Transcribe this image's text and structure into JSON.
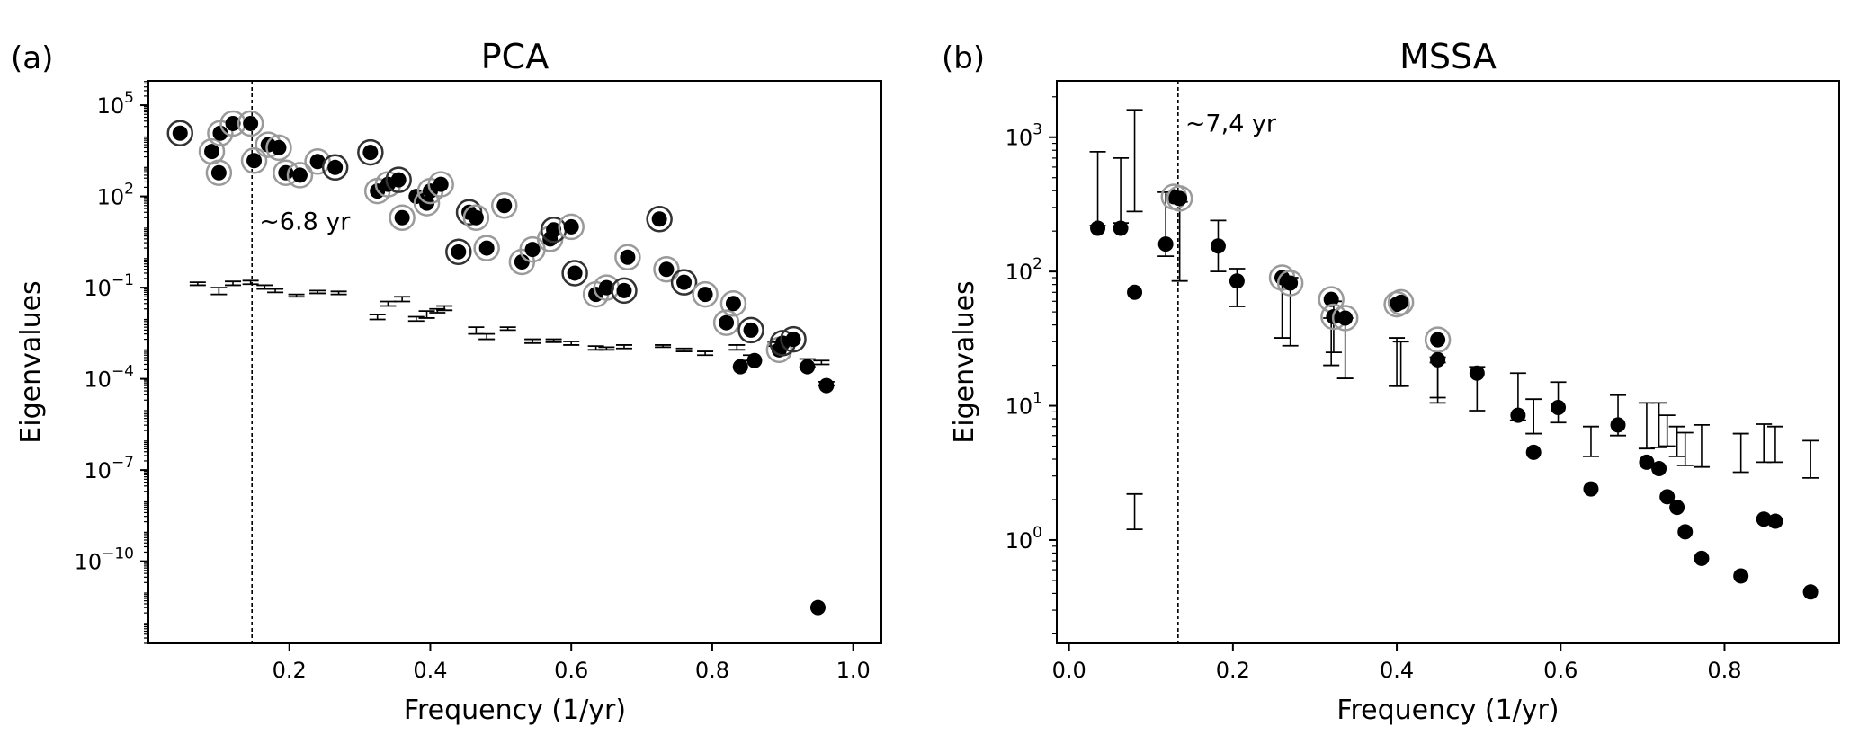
{
  "chart_data": [
    {
      "type": "scatter",
      "panel_label": "(a)",
      "title": "PCA",
      "xlabel": "Frequency (1/yr)",
      "ylabel": "Eigenvalues",
      "yscale": "log",
      "xlim": [
        0.0,
        1.04
      ],
      "ylim_log10": [
        -12.7,
        5.8
      ],
      "xticks": [
        0.2,
        0.4,
        0.6,
        0.8,
        1.0
      ],
      "xtick_labels": [
        "0.2",
        "0.4",
        "0.6",
        "0.8",
        "1.0"
      ],
      "yticks_exp": [
        -10,
        -7,
        -4,
        -1,
        2,
        5
      ],
      "ytick_base": "10",
      "ytick_labels": [
        "−10",
        "−7",
        "−4",
        "−1",
        "2",
        "5"
      ],
      "vline": {
        "x": 0.147,
        "label": "~6.8 yr"
      },
      "points_label": "data eigenvalues (filled) with significance rings",
      "points": [
        {
          "x": 0.045,
          "y": 12000,
          "ring": "dark"
        },
        {
          "x": 0.09,
          "y": 3000,
          "ring": "light"
        },
        {
          "x": 0.1,
          "y": 600,
          "ring": "light"
        },
        {
          "x": 0.102,
          "y": 12000,
          "ring": "light"
        },
        {
          "x": 0.12,
          "y": 25000,
          "ring": "light"
        },
        {
          "x": 0.145,
          "y": 25000,
          "ring": "light"
        },
        {
          "x": 0.15,
          "y": 1500,
          "ring": "light"
        },
        {
          "x": 0.17,
          "y": 5000,
          "ring": "light"
        },
        {
          "x": 0.185,
          "y": 4000,
          "ring": "light"
        },
        {
          "x": 0.195,
          "y": 600,
          "ring": "light"
        },
        {
          "x": 0.215,
          "y": 500,
          "ring": "light"
        },
        {
          "x": 0.24,
          "y": 1400,
          "ring": "light"
        },
        {
          "x": 0.265,
          "y": 900,
          "ring": "dark"
        },
        {
          "x": 0.315,
          "y": 2800,
          "ring": "dark"
        },
        {
          "x": 0.325,
          "y": 150,
          "ring": "light"
        },
        {
          "x": 0.34,
          "y": 250,
          "ring": "light"
        },
        {
          "x": 0.355,
          "y": 350,
          "ring": "dark"
        },
        {
          "x": 0.36,
          "y": 20,
          "ring": "light"
        },
        {
          "x": 0.38,
          "y": 100,
          "ring": "none"
        },
        {
          "x": 0.395,
          "y": 60,
          "ring": "light"
        },
        {
          "x": 0.4,
          "y": 150,
          "ring": "light"
        },
        {
          "x": 0.415,
          "y": 250,
          "ring": "light"
        },
        {
          "x": 0.455,
          "y": 30,
          "ring": "dark"
        },
        {
          "x": 0.465,
          "y": 20,
          "ring": "light"
        },
        {
          "x": 0.44,
          "y": 1.5,
          "ring": "dark"
        },
        {
          "x": 0.48,
          "y": 2.0,
          "ring": "light"
        },
        {
          "x": 0.505,
          "y": 50,
          "ring": "light"
        },
        {
          "x": 0.53,
          "y": 0.7,
          "ring": "light"
        },
        {
          "x": 0.545,
          "y": 1.8,
          "ring": "light"
        },
        {
          "x": 0.57,
          "y": 4.0,
          "ring": "light"
        },
        {
          "x": 0.575,
          "y": 8.0,
          "ring": "dark"
        },
        {
          "x": 0.6,
          "y": 10,
          "ring": "light"
        },
        {
          "x": 0.605,
          "y": 0.3,
          "ring": "dark"
        },
        {
          "x": 0.635,
          "y": 0.06,
          "ring": "light"
        },
        {
          "x": 0.65,
          "y": 0.1,
          "ring": "light"
        },
        {
          "x": 0.675,
          "y": 0.08,
          "ring": "dark"
        },
        {
          "x": 0.68,
          "y": 1.0,
          "ring": "light"
        },
        {
          "x": 0.725,
          "y": 18,
          "ring": "dark"
        },
        {
          "x": 0.735,
          "y": 0.4,
          "ring": "light"
        },
        {
          "x": 0.76,
          "y": 0.15,
          "ring": "dark"
        },
        {
          "x": 0.79,
          "y": 0.06,
          "ring": "light"
        },
        {
          "x": 0.82,
          "y": 0.007,
          "ring": "light"
        },
        {
          "x": 0.83,
          "y": 0.03,
          "ring": "light"
        },
        {
          "x": 0.855,
          "y": 0.004,
          "ring": "dark"
        },
        {
          "x": 0.84,
          "y": 0.00025,
          "ring": "none"
        },
        {
          "x": 0.86,
          "y": 0.0004,
          "ring": "none"
        },
        {
          "x": 0.895,
          "y": 0.0009,
          "ring": "light"
        },
        {
          "x": 0.9,
          "y": 0.0015,
          "ring": "dark"
        },
        {
          "x": 0.915,
          "y": 0.002,
          "ring": "dark"
        },
        {
          "x": 0.935,
          "y": 0.00025,
          "ring": "none"
        },
        {
          "x": 0.962,
          "y": 6e-05,
          "ring": "none"
        },
        {
          "x": 0.95,
          "y": 3e-12,
          "ring": "none"
        }
      ],
      "null_intervals_label": "surrogate bounds (short bars)",
      "null_intervals": [
        {
          "x": 0.07,
          "lo": 0.12,
          "hi": 0.15
        },
        {
          "x": 0.1,
          "lo": 0.06,
          "hi": 0.1
        },
        {
          "x": 0.12,
          "lo": 0.12,
          "hi": 0.16
        },
        {
          "x": 0.145,
          "lo": 0.13,
          "hi": 0.17
        },
        {
          "x": 0.165,
          "lo": 0.09,
          "hi": 0.12
        },
        {
          "x": 0.18,
          "lo": 0.07,
          "hi": 0.09
        },
        {
          "x": 0.21,
          "lo": 0.05,
          "hi": 0.06
        },
        {
          "x": 0.24,
          "lo": 0.065,
          "hi": 0.08
        },
        {
          "x": 0.27,
          "lo": 0.06,
          "hi": 0.075
        },
        {
          "x": 0.325,
          "lo": 0.009,
          "hi": 0.013
        },
        {
          "x": 0.34,
          "lo": 0.025,
          "hi": 0.035
        },
        {
          "x": 0.36,
          "lo": 0.035,
          "hi": 0.05
        },
        {
          "x": 0.38,
          "lo": 0.008,
          "hi": 0.011
        },
        {
          "x": 0.395,
          "lo": 0.01,
          "hi": 0.017
        },
        {
          "x": 0.41,
          "lo": 0.015,
          "hi": 0.02
        },
        {
          "x": 0.42,
          "lo": 0.018,
          "hi": 0.025
        },
        {
          "x": 0.465,
          "lo": 0.003,
          "hi": 0.005
        },
        {
          "x": 0.48,
          "lo": 0.002,
          "hi": 0.003
        },
        {
          "x": 0.51,
          "lo": 0.004,
          "hi": 0.005
        },
        {
          "x": 0.545,
          "lo": 0.0015,
          "hi": 0.002
        },
        {
          "x": 0.575,
          "lo": 0.0016,
          "hi": 0.002
        },
        {
          "x": 0.6,
          "lo": 0.0013,
          "hi": 0.0017
        },
        {
          "x": 0.635,
          "lo": 0.0009,
          "hi": 0.0012
        },
        {
          "x": 0.65,
          "lo": 0.0009,
          "hi": 0.0011
        },
        {
          "x": 0.675,
          "lo": 0.001,
          "hi": 0.0013
        },
        {
          "x": 0.73,
          "lo": 0.0011,
          "hi": 0.0013
        },
        {
          "x": 0.76,
          "lo": 0.0008,
          "hi": 0.001
        },
        {
          "x": 0.79,
          "lo": 0.0006,
          "hi": 0.0008
        },
        {
          "x": 0.835,
          "lo": 0.0009,
          "hi": 0.0013
        },
        {
          "x": 0.855,
          "lo": 0.0004,
          "hi": 0.0006
        },
        {
          "x": 0.89,
          "lo": 0.0012,
          "hi": 0.0016
        },
        {
          "x": 0.935,
          "lo": 0.00025,
          "hi": 0.00045
        },
        {
          "x": 0.955,
          "lo": 0.0003,
          "hi": 0.0004
        },
        {
          "x": 0.962,
          "lo": 6e-05,
          "hi": 8e-05
        }
      ]
    },
    {
      "type": "scatter",
      "panel_label": "(b)",
      "title": "MSSA",
      "xlabel": "Frequency (1/yr)",
      "ylabel": "Eigenvalues",
      "yscale": "log",
      "xlim": [
        -0.015,
        0.94
      ],
      "ylim_log10": [
        -0.77,
        3.42
      ],
      "xticks": [
        0.0,
        0.2,
        0.4,
        0.6,
        0.8
      ],
      "xtick_labels": [
        "0.0",
        "0.2",
        "0.4",
        "0.6",
        "0.8"
      ],
      "yticks_exp": [
        0,
        1,
        2,
        3
      ],
      "ytick_base": "10",
      "ytick_labels": [
        "0",
        "1",
        "2",
        "3"
      ],
      "vline": {
        "x": 0.133,
        "label": "~7,4 yr"
      },
      "points_label": "data eigenvalues (filled) with significance rings",
      "points": [
        {
          "x": 0.035,
          "y": 210,
          "ring": "none"
        },
        {
          "x": 0.063,
          "y": 210,
          "ring": "none"
        },
        {
          "x": 0.08,
          "y": 70,
          "ring": "none"
        },
        {
          "x": 0.118,
          "y": 160,
          "ring": "none"
        },
        {
          "x": 0.128,
          "y": 360,
          "ring": "light"
        },
        {
          "x": 0.135,
          "y": 350,
          "ring": "light"
        },
        {
          "x": 0.182,
          "y": 155,
          "ring": "none"
        },
        {
          "x": 0.205,
          "y": 85,
          "ring": "none"
        },
        {
          "x": 0.26,
          "y": 90,
          "ring": "light"
        },
        {
          "x": 0.27,
          "y": 82,
          "ring": "light"
        },
        {
          "x": 0.32,
          "y": 62,
          "ring": "light"
        },
        {
          "x": 0.323,
          "y": 46,
          "ring": "light"
        },
        {
          "x": 0.337,
          "y": 45,
          "ring": "light"
        },
        {
          "x": 0.4,
          "y": 57,
          "ring": "light"
        },
        {
          "x": 0.405,
          "y": 59,
          "ring": "light"
        },
        {
          "x": 0.45,
          "y": 31,
          "ring": "light"
        },
        {
          "x": 0.45,
          "y": 22,
          "ring": "none"
        },
        {
          "x": 0.498,
          "y": 17.5,
          "ring": "none"
        },
        {
          "x": 0.548,
          "y": 8.5,
          "ring": "none"
        },
        {
          "x": 0.567,
          "y": 4.5,
          "ring": "none"
        },
        {
          "x": 0.597,
          "y": 9.7,
          "ring": "none"
        },
        {
          "x": 0.637,
          "y": 2.4,
          "ring": "none"
        },
        {
          "x": 0.67,
          "y": 7.2,
          "ring": "none"
        },
        {
          "x": 0.705,
          "y": 3.8,
          "ring": "none"
        },
        {
          "x": 0.72,
          "y": 3.4,
          "ring": "none"
        },
        {
          "x": 0.73,
          "y": 2.1,
          "ring": "none"
        },
        {
          "x": 0.742,
          "y": 1.75,
          "ring": "none"
        },
        {
          "x": 0.752,
          "y": 1.15,
          "ring": "none"
        },
        {
          "x": 0.772,
          "y": 0.73,
          "ring": "none"
        },
        {
          "x": 0.82,
          "y": 0.54,
          "ring": "none"
        },
        {
          "x": 0.848,
          "y": 1.43,
          "ring": "none"
        },
        {
          "x": 0.862,
          "y": 1.38,
          "ring": "none"
        },
        {
          "x": 0.905,
          "y": 0.41,
          "ring": "none"
        }
      ],
      "null_intervals_label": "surrogate bounds (error bars)",
      "null_intervals": [
        {
          "x": 0.035,
          "lo": 220,
          "hi": 780
        },
        {
          "x": 0.063,
          "lo": 230,
          "hi": 700
        },
        {
          "x": 0.08,
          "lo": 280,
          "hi": 1600
        },
        {
          "x": 0.08,
          "lo": 1.2,
          "hi": 2.2
        },
        {
          "x": 0.118,
          "lo": 130,
          "hi": 390
        },
        {
          "x": 0.135,
          "lo": 85,
          "hi": 330
        },
        {
          "x": 0.182,
          "lo": 100,
          "hi": 240
        },
        {
          "x": 0.205,
          "lo": 55,
          "hi": 105
        },
        {
          "x": 0.26,
          "lo": 32,
          "hi": 90
        },
        {
          "x": 0.27,
          "lo": 28,
          "hi": 90
        },
        {
          "x": 0.32,
          "lo": 20,
          "hi": 45
        },
        {
          "x": 0.323,
          "lo": 25,
          "hi": 60
        },
        {
          "x": 0.337,
          "lo": 16,
          "hi": 45
        },
        {
          "x": 0.4,
          "lo": 14,
          "hi": 32
        },
        {
          "x": 0.405,
          "lo": 14,
          "hi": 30
        },
        {
          "x": 0.45,
          "lo": 10.5,
          "hi": 21
        },
        {
          "x": 0.45,
          "lo": 11.5,
          "hi": 23
        },
        {
          "x": 0.498,
          "lo": 9.2,
          "hi": 19.5
        },
        {
          "x": 0.548,
          "lo": 7.8,
          "hi": 17.5
        },
        {
          "x": 0.567,
          "lo": 6.2,
          "hi": 11.2
        },
        {
          "x": 0.597,
          "lo": 7.5,
          "hi": 15
        },
        {
          "x": 0.637,
          "lo": 4.2,
          "hi": 7.0
        },
        {
          "x": 0.67,
          "lo": 6.0,
          "hi": 12
        },
        {
          "x": 0.705,
          "lo": 4.8,
          "hi": 10.5
        },
        {
          "x": 0.72,
          "lo": 4.9,
          "hi": 10.5
        },
        {
          "x": 0.73,
          "lo": 5.0,
          "hi": 8.5
        },
        {
          "x": 0.742,
          "lo": 4.2,
          "hi": 7.0
        },
        {
          "x": 0.752,
          "lo": 3.6,
          "hi": 6.3
        },
        {
          "x": 0.772,
          "lo": 3.5,
          "hi": 7.2
        },
        {
          "x": 0.82,
          "lo": 3.2,
          "hi": 6.2
        },
        {
          "x": 0.848,
          "lo": 3.8,
          "hi": 7.3
        },
        {
          "x": 0.862,
          "lo": 3.8,
          "hi": 7.0
        },
        {
          "x": 0.905,
          "lo": 2.9,
          "hi": 5.5
        }
      ]
    }
  ]
}
